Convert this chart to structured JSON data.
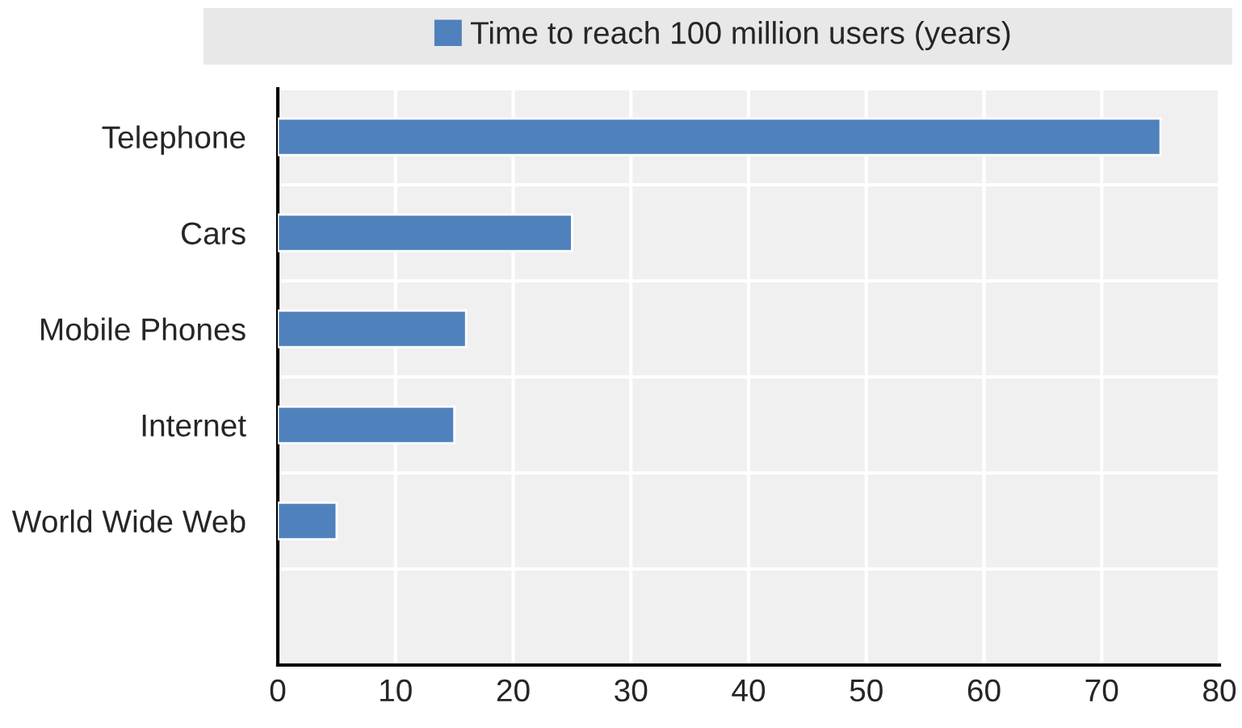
{
  "chart_data": {
    "type": "bar",
    "orientation": "horizontal",
    "categories": [
      "Telephone",
      "Cars",
      "Mobile Phones",
      "Internet",
      "World Wide Web",
      null
    ],
    "series": [
      {
        "name": "Time to reach 100 million users (years)",
        "color": "#4f81bd",
        "values": [
          75,
          25,
          16,
          15,
          5,
          null
        ]
      }
    ],
    "xlim": [
      0,
      80
    ],
    "xticks": [
      0,
      10,
      20,
      30,
      40,
      50,
      60,
      70,
      80
    ],
    "grid": true,
    "legend": "top"
  }
}
